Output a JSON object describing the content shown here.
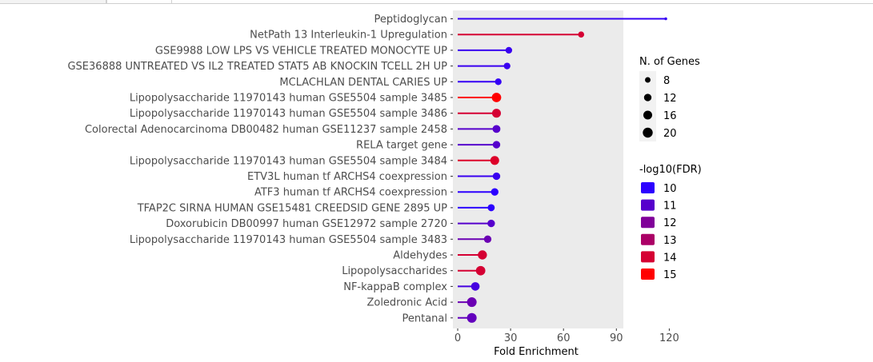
{
  "chart_data": {
    "type": "lollipop",
    "categories": [
      "Peptidoglycan",
      "NetPath 13 Interleukin-1 Upregulation",
      "GSE9988 LOW LPS VS VEHICLE TREATED MONOCYTE UP",
      "GSE36888 UNTREATED VS IL2 TREATED STAT5 AB KNOCKIN TCELL 2H UP",
      "MCLACHLAN DENTAL CARIES UP",
      "Lipopolysaccharide 11970143 human GSE5504 sample 3485",
      "Lipopolysaccharide 11970143 human GSE5504 sample 3486",
      "Colorectal Adenocarcinoma DB00482 human GSE11237 sample 2458",
      "RELA target gene",
      "Lipopolysaccharide 11970143 human GSE5504 sample 3484",
      "ETV3L human tf ARCHS4 coexpression",
      "ATF3 human tf ARCHS4 coexpression",
      "TFAP2C SIRNA HUMAN GSE15481 CREEDSID GENE 2895 UP",
      "Doxorubicin DB00997 human GSE12972 sample 2720",
      "Lipopolysaccharide 11970143 human GSE5504 sample 3483",
      "Aldehydes",
      "Lipopolysaccharides",
      "NF-kappaB complex",
      "Zoledronic Acid",
      "Pentanal"
    ],
    "values": [
      118,
      70,
      29,
      28,
      23,
      22,
      22,
      22,
      22,
      21,
      22,
      21,
      19,
      19,
      17,
      14,
      13,
      10,
      8,
      8
    ],
    "n_genes": [
      6,
      9,
      10,
      10,
      10,
      18,
      16,
      13,
      12,
      16,
      12,
      12,
      11,
      12,
      12,
      17,
      18,
      15,
      19,
      19
    ],
    "neg_log10_fdr": [
      10.2,
      14.0,
      10.3,
      10.3,
      10.2,
      15.0,
      14.0,
      11.0,
      11.0,
      14.2,
      10.3,
      10.0,
      9.8,
      11.0,
      11.5,
      14.0,
      14.0,
      10.6,
      11.5,
      11.3
    ],
    "xlabel": "Fold Enrichment",
    "ylabel": "",
    "xlim": [
      0,
      125
    ],
    "xticks": [
      0,
      30,
      60,
      90,
      120
    ],
    "grid": false,
    "size_legend": {
      "title": "N. of Genes",
      "values": [
        8,
        12,
        16,
        20
      ]
    },
    "color_legend": {
      "title": "-log10(FDR)",
      "values": [
        10,
        11,
        12,
        13,
        14,
        15
      ]
    },
    "legend_position": "right",
    "colors": {
      "panel_bg": "#ebebeb",
      "text": "#4d4d4d",
      "low": "#2c00ff",
      "high": "#ff0000"
    }
  }
}
